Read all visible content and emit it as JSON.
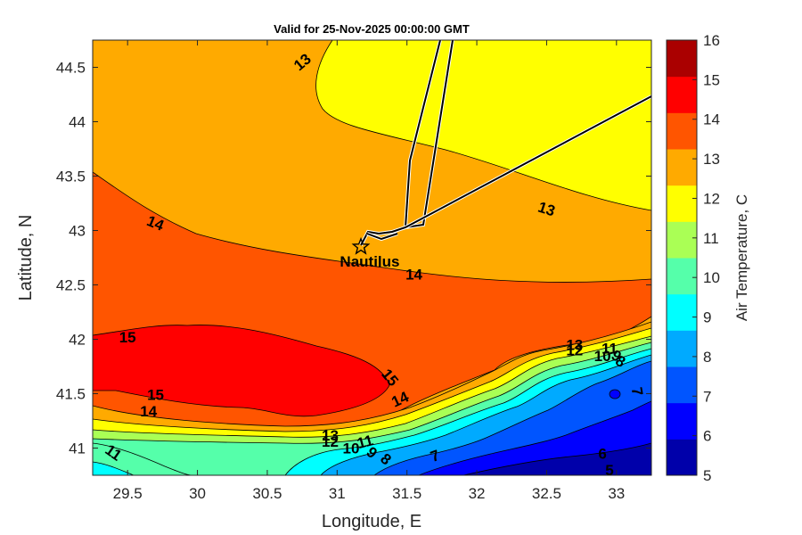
{
  "chart_data": {
    "type": "heatmap",
    "title": "Valid for 25-Nov-2025 00:00:00 GMT",
    "xlabel": "Longitude, E",
    "ylabel": "Latitude, N",
    "xlim": [
      29.25,
      33.25
    ],
    "ylim": [
      40.75,
      44.75
    ],
    "xticks": [
      "29.5",
      "30",
      "30.5",
      "31",
      "31.5",
      "32",
      "32.5",
      "33"
    ],
    "xtick_values": [
      29.5,
      30,
      30.5,
      31,
      31.5,
      32,
      32.5,
      33
    ],
    "yticks": [
      "41",
      "41.5",
      "42",
      "42.5",
      "43",
      "43.5",
      "44",
      "44.5"
    ],
    "ytick_values": [
      41,
      41.5,
      42,
      42.5,
      43,
      43.5,
      44,
      44.5
    ],
    "colorbar": {
      "label": "Air Temperature, C",
      "ticks": [
        "5",
        "6",
        "7",
        "8",
        "9",
        "10",
        "11",
        "12",
        "13",
        "14",
        "15",
        "16"
      ],
      "min": 5,
      "max": 16,
      "colors": [
        "#0000aa",
        "#0000ff",
        "#0055ff",
        "#00aaff",
        "#00ffff",
        "#55ffaa",
        "#aaff55",
        "#ffff00",
        "#ffaa00",
        "#ff5500",
        "#ff0000",
        "#aa0000"
      ]
    },
    "contour_labels": [
      {
        "text": "13",
        "lon": 30.75,
        "lat": 44.55,
        "rot": -40
      },
      {
        "text": "13",
        "lon": 32.5,
        "lat": 43.2,
        "rot": 18
      },
      {
        "text": "14",
        "lon": 29.7,
        "lat": 43.07,
        "rot": 22
      },
      {
        "text": "14",
        "lon": 31.55,
        "lat": 42.6,
        "rot": 0
      },
      {
        "text": "15",
        "lon": 29.5,
        "lat": 42.02,
        "rot": 0
      },
      {
        "text": "15",
        "lon": 31.38,
        "lat": 41.65,
        "rot": 50
      },
      {
        "text": "15",
        "lon": 29.7,
        "lat": 41.49,
        "rot": 0
      },
      {
        "text": "14",
        "lon": 29.65,
        "lat": 41.34,
        "rot": 0
      },
      {
        "text": "14",
        "lon": 31.45,
        "lat": 41.45,
        "rot": -25
      },
      {
        "text": "13",
        "lon": 30.95,
        "lat": 41.12,
        "rot": 0
      },
      {
        "text": "12",
        "lon": 30.95,
        "lat": 41.06,
        "rot": 0
      },
      {
        "text": "11",
        "lon": 31.2,
        "lat": 41.06,
        "rot": -15
      },
      {
        "text": "10",
        "lon": 31.1,
        "lat": 41.0,
        "rot": 0
      },
      {
        "text": "9",
        "lon": 31.25,
        "lat": 40.96,
        "rot": 40
      },
      {
        "text": "8",
        "lon": 31.35,
        "lat": 40.9,
        "rot": 40
      },
      {
        "text": "7",
        "lon": 31.7,
        "lat": 40.93,
        "rot": -20
      },
      {
        "text": "11",
        "lon": 29.4,
        "lat": 40.96,
        "rot": 35
      },
      {
        "text": "13",
        "lon": 32.7,
        "lat": 41.95,
        "rot": 0
      },
      {
        "text": "12",
        "lon": 32.7,
        "lat": 41.9,
        "rot": 0
      },
      {
        "text": "11",
        "lon": 32.95,
        "lat": 41.92,
        "rot": 0
      },
      {
        "text": "10",
        "lon": 32.9,
        "lat": 41.85,
        "rot": 0
      },
      {
        "text": "9",
        "lon": 33.0,
        "lat": 41.85,
        "rot": 30
      },
      {
        "text": "8",
        "lon": 33.03,
        "lat": 41.8,
        "rot": 30
      },
      {
        "text": "7",
        "lon": 33.15,
        "lat": 41.52,
        "rot": 80
      },
      {
        "text": "6",
        "lon": 32.9,
        "lat": 40.95,
        "rot": 0
      },
      {
        "text": "5",
        "lon": 32.95,
        "lat": 40.8,
        "rot": 0
      }
    ],
    "site": {
      "name": "Nautilus",
      "lon": 31.17,
      "lat": 42.85
    }
  }
}
